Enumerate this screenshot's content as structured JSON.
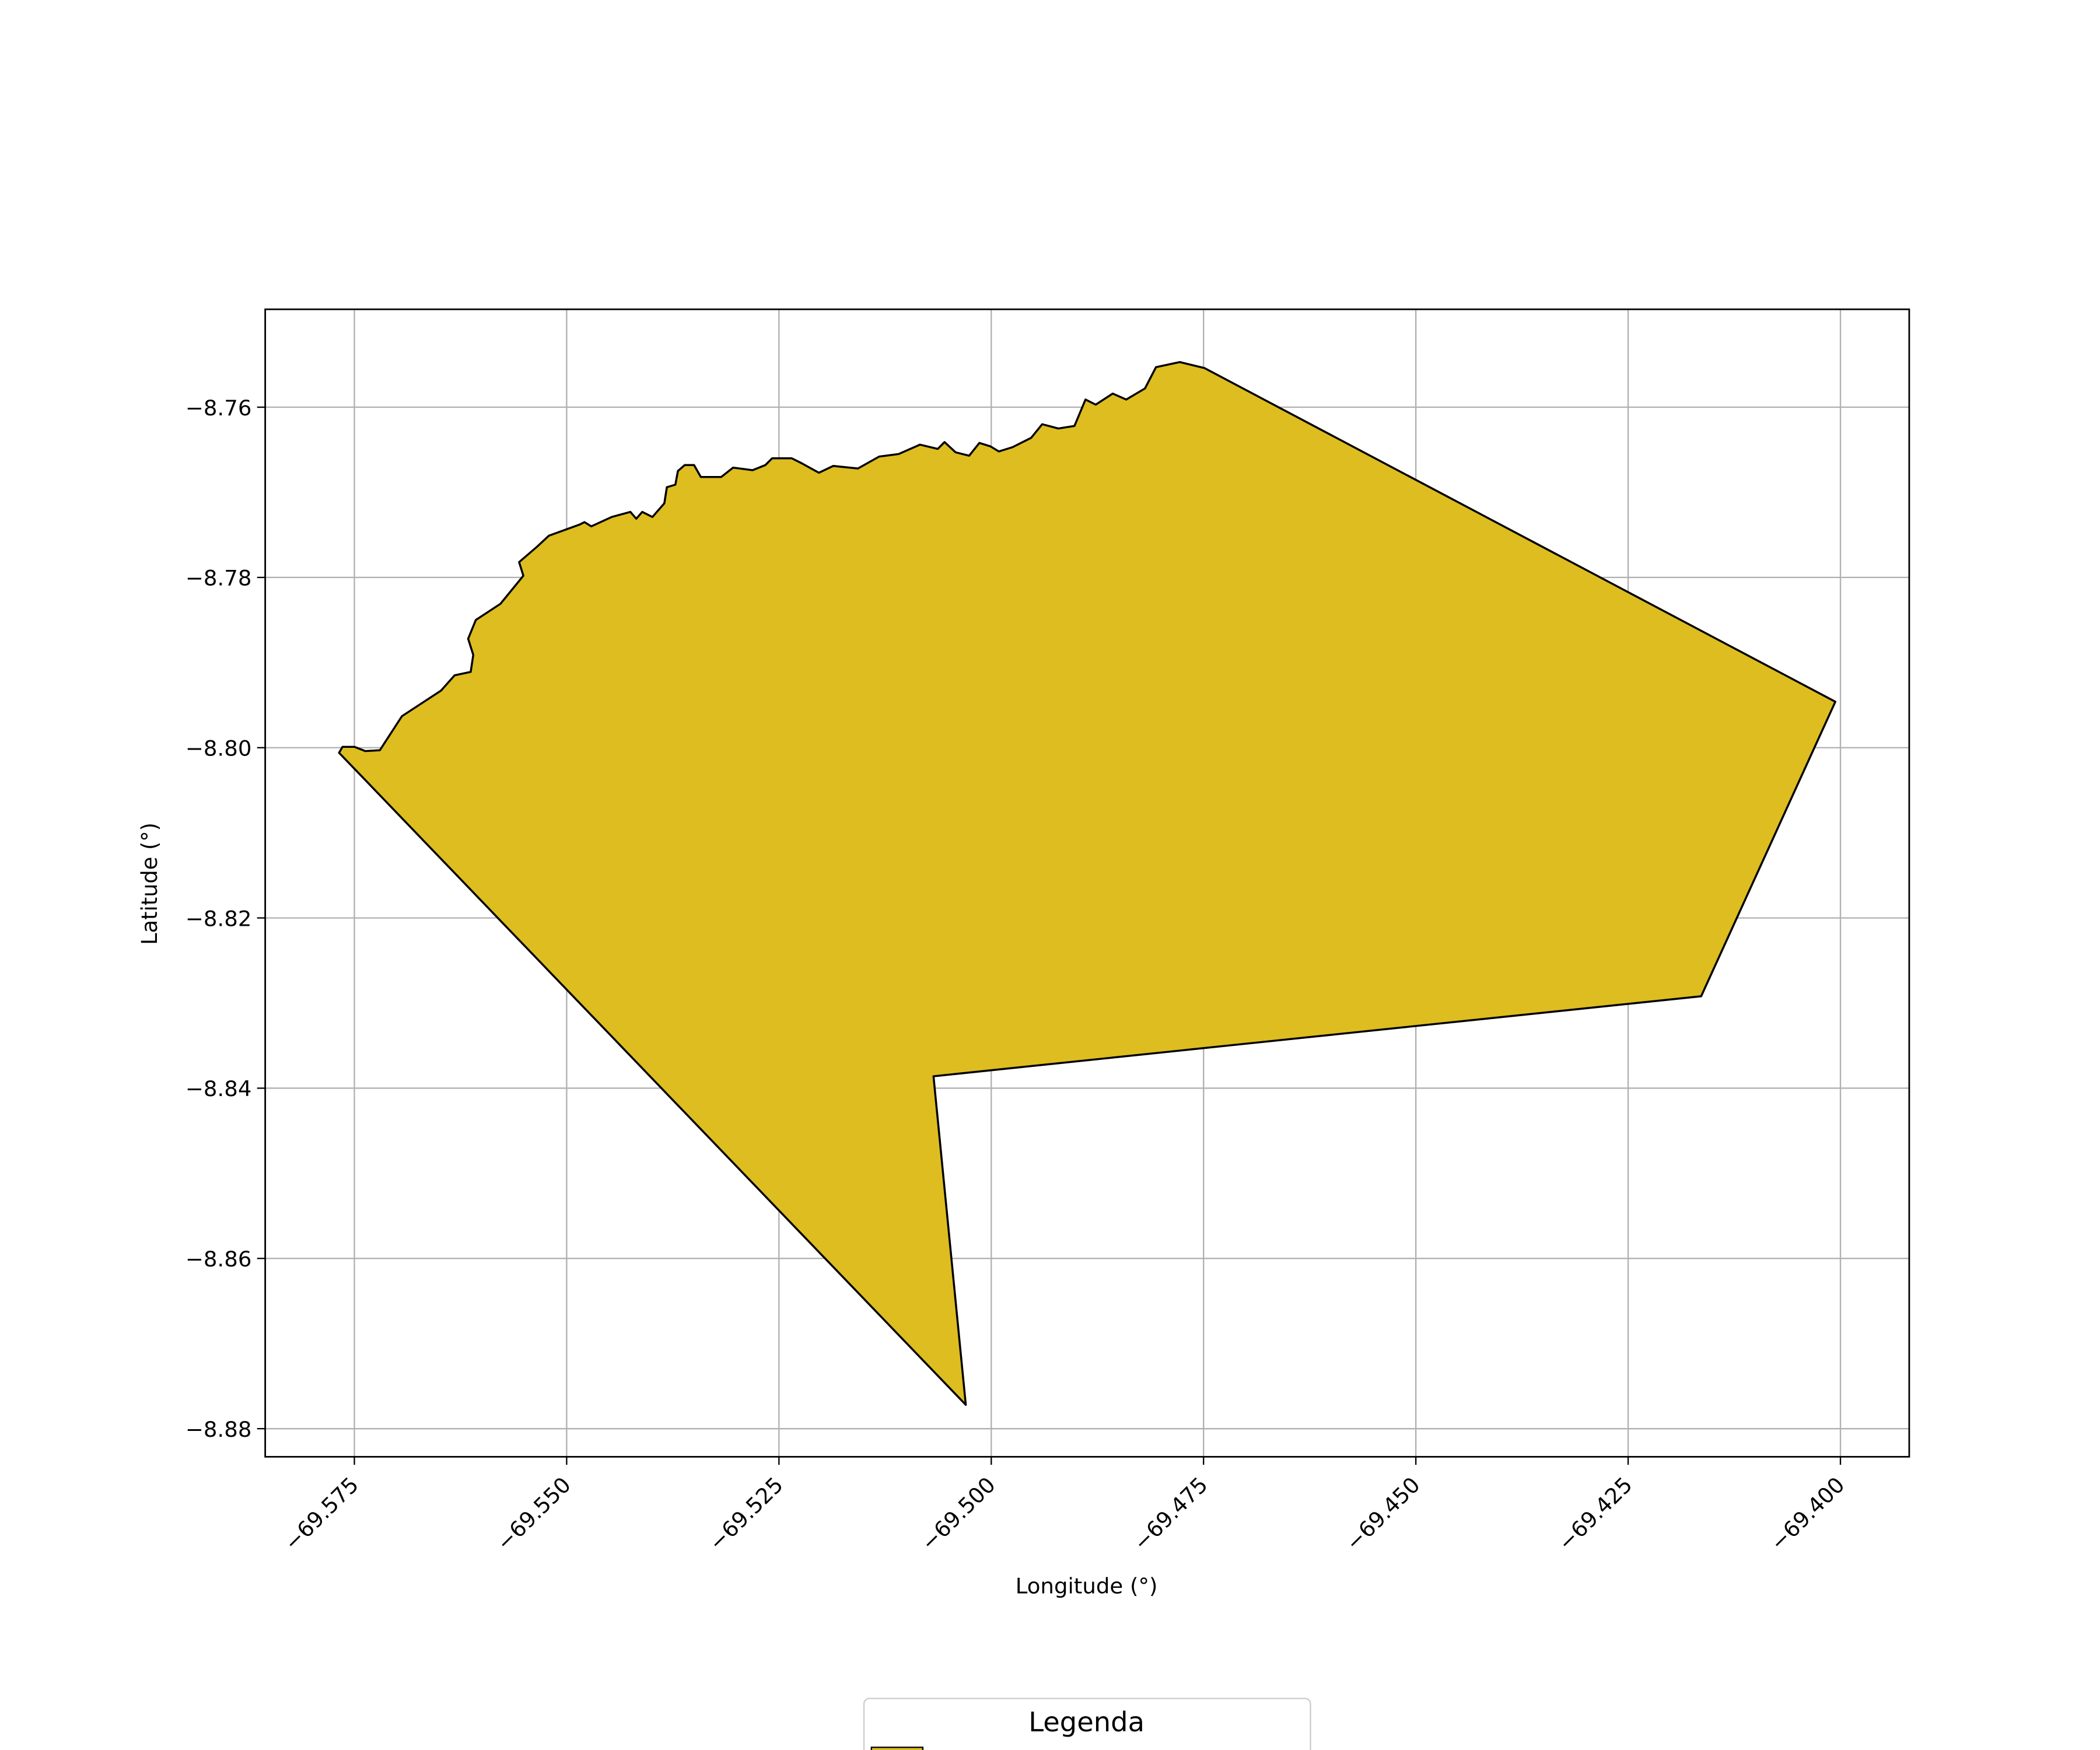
{
  "chart_data": {
    "type": "polygon",
    "xlabel": "Longitude (°)",
    "ylabel": "Latitude (°)",
    "legend_title": "Legenda",
    "grid": true,
    "xlim": [
      -69.5855,
      -69.3919
    ],
    "ylim": [
      -8.8833,
      -8.7485
    ],
    "xticks": [
      {
        "value": -69.575,
        "label": "−69.575"
      },
      {
        "value": -69.55,
        "label": "−69.550"
      },
      {
        "value": -69.525,
        "label": "−69.525"
      },
      {
        "value": -69.5,
        "label": "−69.500"
      },
      {
        "value": -69.475,
        "label": "−69.475"
      },
      {
        "value": -69.45,
        "label": "−69.450"
      },
      {
        "value": -69.425,
        "label": "−69.425"
      },
      {
        "value": -69.4,
        "label": "−69.400"
      }
    ],
    "yticks": [
      {
        "value": -8.76,
        "label": "−8.76"
      },
      {
        "value": -8.78,
        "label": "−8.78"
      },
      {
        "value": -8.8,
        "label": "−8.80"
      },
      {
        "value": -8.82,
        "label": "−8.82"
      },
      {
        "value": -8.84,
        "label": "−8.84"
      },
      {
        "value": -8.86,
        "label": "−8.86"
      },
      {
        "value": -8.88,
        "label": "−8.88"
      }
    ],
    "series": [
      {
        "color": "#ddbd20",
        "edgecolor": "#000000",
        "x": [
          -69.5768,
          -69.5764,
          -69.575,
          -69.5737,
          -69.572,
          -69.5694,
          -69.5648,
          -69.5632,
          -69.5613,
          -69.561,
          -69.5616,
          -69.5607,
          -69.5578,
          -69.5551,
          -69.5556,
          -69.5535,
          -69.5521,
          -69.5485,
          -69.5479,
          -69.5471,
          -69.5447,
          -69.5425,
          -69.5418,
          -69.5411,
          -69.5399,
          -69.5385,
          -69.5382,
          -69.5372,
          -69.5369,
          -69.5361,
          -69.535,
          -69.5342,
          -69.5318,
          -69.5304,
          -69.5281,
          -69.5266,
          -69.5258,
          -69.5235,
          -69.5223,
          -69.5203,
          -69.5186,
          -69.5157,
          -69.5132,
          -69.5109,
          -69.5084,
          -69.5063,
          -69.5055,
          -69.5042,
          -69.5026,
          -69.5014,
          -69.5001,
          -69.4991,
          -69.4975,
          -69.4953,
          -69.494,
          -69.4921,
          -69.4902,
          -69.4889,
          -69.4877,
          -69.4857,
          -69.4841,
          -69.4819,
          -69.4806,
          -69.4778,
          -69.4749,
          -69.4006,
          -69.4164,
          -69.5068,
          -69.503
        ],
        "y": [
          -8.8006,
          -8.7999,
          -8.7999,
          -8.8004,
          -8.8003,
          -8.7963,
          -8.7933,
          -8.7915,
          -8.7911,
          -8.7891,
          -8.7872,
          -8.785,
          -8.7831,
          -8.7798,
          -8.7782,
          -8.7764,
          -8.7751,
          -8.7738,
          -8.7735,
          -8.774,
          -8.7729,
          -8.7723,
          -8.7731,
          -8.7723,
          -8.7729,
          -8.7713,
          -8.7694,
          -8.7691,
          -8.7675,
          -8.7668,
          -8.7668,
          -8.7682,
          -8.7682,
          -8.7671,
          -8.7674,
          -8.7668,
          -8.766,
          -8.766,
          -8.7666,
          -8.7677,
          -8.7669,
          -8.7672,
          -8.7658,
          -8.7655,
          -8.7644,
          -8.7649,
          -8.7641,
          -8.7653,
          -8.7657,
          -8.7642,
          -8.7646,
          -8.7652,
          -8.7647,
          -8.7636,
          -8.762,
          -8.7625,
          -8.7622,
          -8.7591,
          -8.7597,
          -8.7584,
          -8.7591,
          -8.7578,
          -8.7553,
          -8.7547,
          -8.7554,
          -8.7946,
          -8.8292,
          -8.8386,
          -8.8772
        ]
      }
    ]
  }
}
